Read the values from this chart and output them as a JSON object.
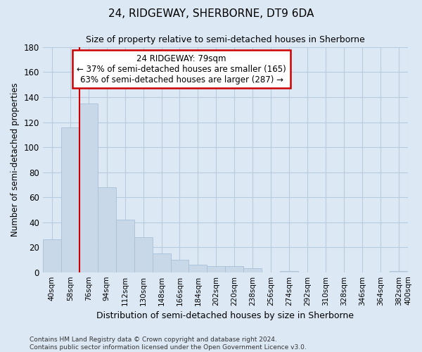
{
  "title": "24, RIDGEWAY, SHERBORNE, DT9 6DA",
  "subtitle": "Size of property relative to semi-detached houses in Sherborne",
  "xlabel": "Distribution of semi-detached houses by size in Sherborne",
  "ylabel": "Number of semi-detached properties",
  "bin_labels": [
    "40sqm",
    "58sqm",
    "76sqm",
    "94sqm",
    "112sqm",
    "130sqm",
    "148sqm",
    "166sqm",
    "184sqm",
    "202sqm",
    "220sqm",
    "238sqm",
    "256sqm",
    "274sqm",
    "292sqm",
    "310sqm",
    "328sqm",
    "346sqm",
    "364sqm",
    "382sqm",
    "400sqm"
  ],
  "bar_heights": [
    26,
    116,
    135,
    68,
    42,
    28,
    15,
    10,
    6,
    5,
    5,
    3,
    0,
    1,
    0,
    0,
    0,
    0,
    0,
    1
  ],
  "bar_color": "#c8d8e8",
  "bar_edge_color": "#a8c0d8",
  "grid_color": "#b8cce0",
  "background_color": "#dce8f4",
  "property_bin_index": 2,
  "red_line_color": "#cc0000",
  "annotation_line1": "24 RIDGEWAY: 79sqm",
  "annotation_line2": "← 37% of semi-detached houses are smaller (165)",
  "annotation_line3": "63% of semi-detached houses are larger (287) →",
  "annotation_box_color": "#ffffff",
  "annotation_box_edge": "#cc0000",
  "ylim": [
    0,
    180
  ],
  "yticks": [
    0,
    20,
    40,
    60,
    80,
    100,
    120,
    140,
    160,
    180
  ],
  "footnote": "Contains HM Land Registry data © Crown copyright and database right 2024.\nContains public sector information licensed under the Open Government Licence v3.0."
}
